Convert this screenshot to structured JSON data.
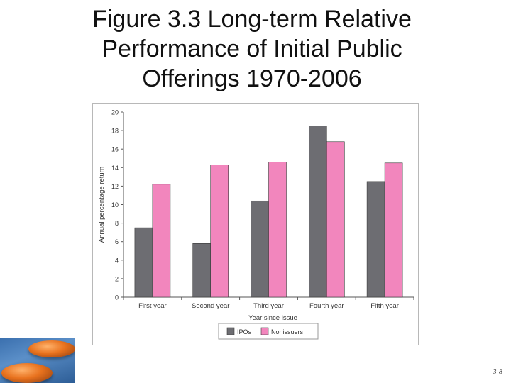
{
  "slide": {
    "title_lines": [
      "Figure 3.3 Long-term Relative",
      "Performance of Initial Public",
      "Offerings 1970-2006"
    ],
    "page_number": "3-8"
  },
  "chart_data": {
    "type": "bar",
    "categories": [
      "First year",
      "Second year",
      "Third year",
      "Fourth year",
      "Fifth year"
    ],
    "series": [
      {
        "name": "IPOs",
        "color": "#6d6d72",
        "values": [
          7.5,
          5.8,
          10.4,
          18.5,
          12.5
        ]
      },
      {
        "name": "Nonissuers",
        "color": "#f286bd",
        "values": [
          12.2,
          14.3,
          14.6,
          16.8,
          14.5
        ]
      }
    ],
    "xlabel": "Year since issue",
    "ylabel": "Annual percentage return",
    "ylim": [
      0,
      20
    ],
    "yticks": [
      "0",
      "2",
      "4",
      "6",
      "8",
      "10",
      "12",
      "14",
      "16",
      "18",
      "20"
    ],
    "grid": false,
    "legend_position": "bottom-center"
  }
}
